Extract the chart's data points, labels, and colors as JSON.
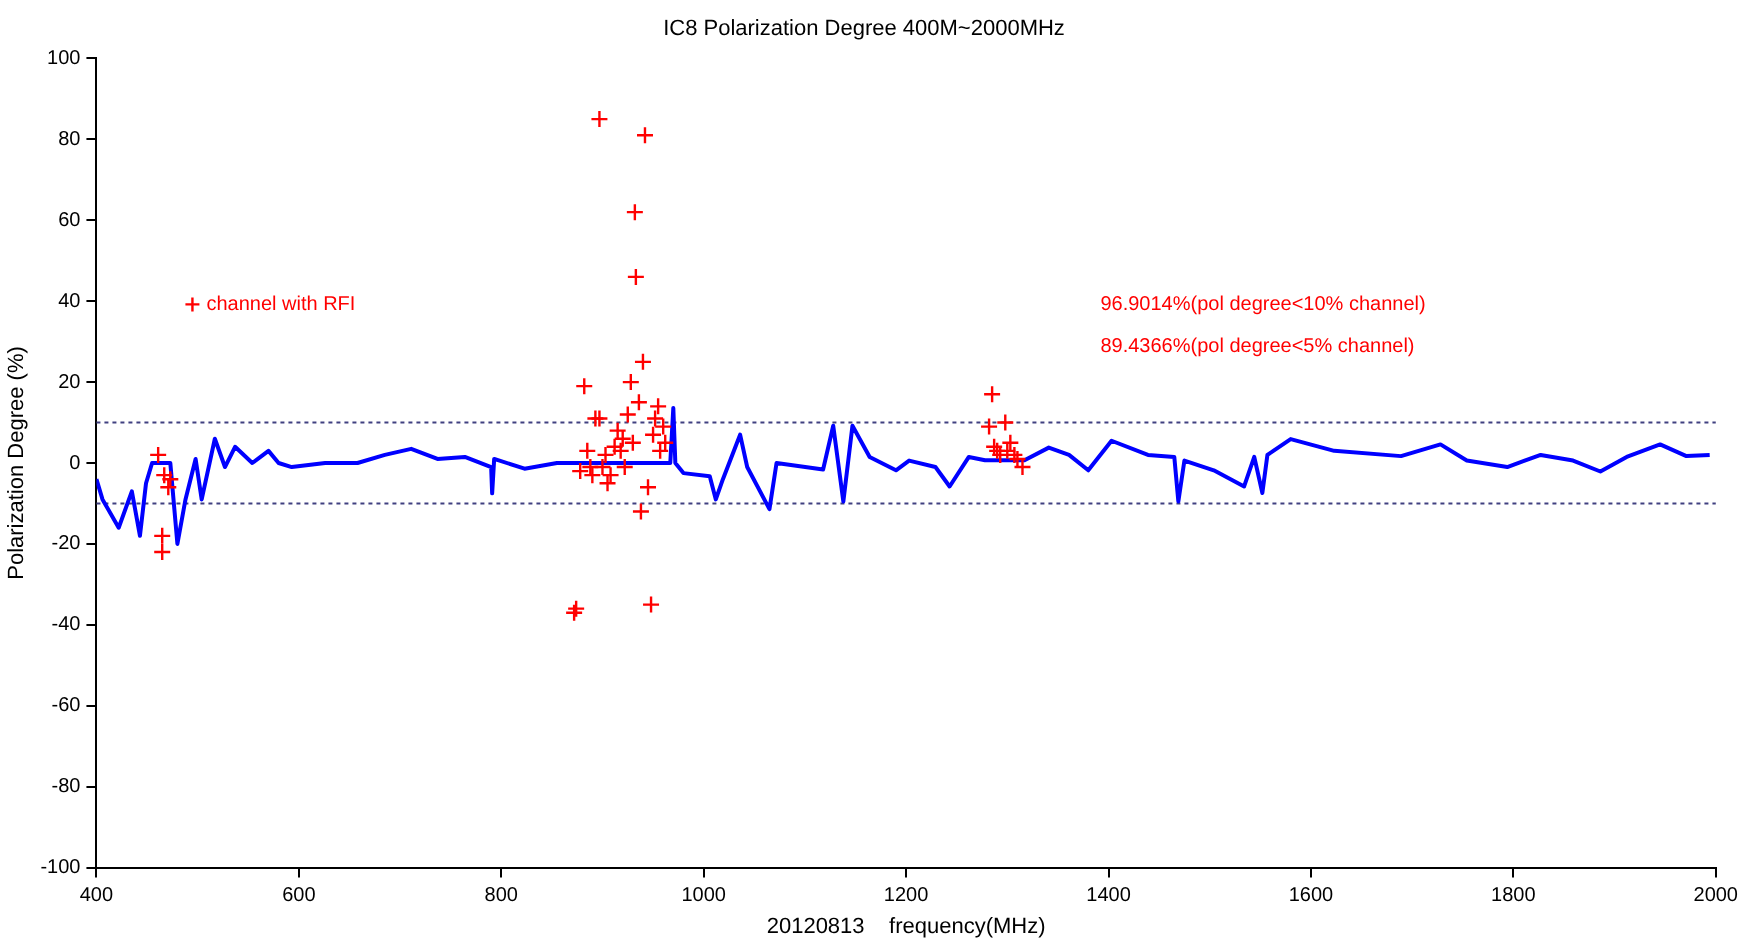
{
  "chart_data": {
    "type": "line",
    "title": "IC8 Polarization Degree 400M~2000MHz",
    "xlabel": "20120813    frequency(MHz)",
    "ylabel": "Polarization Degree (%)",
    "xlim": [
      400,
      2000
    ],
    "xticks": [
      400,
      600,
      800,
      1000,
      1200,
      1400,
      1600,
      1800,
      2000
    ],
    "ylim": [
      -100,
      100
    ],
    "yticks": [
      -100,
      -80,
      -60,
      -40,
      -20,
      0,
      20,
      40,
      60,
      80,
      100
    ],
    "grid": false,
    "legend": "top left",
    "annotations": [
      "96.9014%(pol degree<10% channel)",
      "89.4366%(pol degree<5% channel)"
    ],
    "ref_lines": [
      {
        "axis": "y",
        "value": 10,
        "color": "#404080",
        "line_style": "dotted"
      },
      {
        "axis": "y",
        "value": -10,
        "color": "#404080",
        "line_style": "dotted"
      }
    ],
    "series": [
      {
        "color": "#0000ff",
        "marker": "none",
        "line_style": "solid",
        "x": [
          400,
          406,
          422,
          435,
          443,
          449,
          455,
          473,
          480,
          488,
          498,
          504,
          517,
          527,
          537,
          554,
          570,
          580,
          593,
          626,
          658,
          685,
          711,
          737,
          764,
          790,
          791,
          793,
          823,
          855,
          967,
          970,
          972,
          980,
          1006,
          1012,
          1019,
          1036,
          1043,
          1065,
          1072,
          1118,
          1128,
          1138,
          1147,
          1164,
          1190,
          1203,
          1229,
          1243,
          1262,
          1278,
          1317,
          1341,
          1361,
          1380,
          1403,
          1439,
          1465,
          1469,
          1475,
          1504,
          1534,
          1544,
          1552,
          1557,
          1580,
          1623,
          1689,
          1728,
          1754,
          1794,
          1827,
          1859,
          1886,
          1912,
          1945,
          1971,
          1994
        ],
        "values": [
          -4,
          -9,
          -16,
          -7,
          -18,
          -5,
          0,
          0,
          -20,
          -9,
          1,
          -9,
          6,
          -1,
          4,
          0,
          3,
          0,
          -1,
          0,
          0,
          2,
          3.5,
          1,
          1.5,
          -1,
          -7.5,
          1,
          -1.4,
          0,
          0,
          13.6,
          0,
          -2.5,
          -3.3,
          -9,
          -4,
          7,
          -1,
          -11.4,
          0,
          -1.6,
          9.2,
          -9.5,
          9.2,
          1.5,
          -1.8,
          0.6,
          -1,
          -5.8,
          1.5,
          0.7,
          0.7,
          3.8,
          2,
          -1.8,
          5.5,
          2,
          1.5,
          -9.5,
          0.6,
          -1.8,
          -5.8,
          1.5,
          -7.4,
          2,
          5.9,
          3,
          1.7,
          4.6,
          0.6,
          -1,
          2,
          0.6,
          -2.1,
          1.5,
          4.6,
          1.7,
          2
        ]
      },
      {
        "type": "scatter",
        "name": "channel with RFI",
        "color": "#ff0000",
        "marker": "cross",
        "x": [
          461,
          465,
          465,
          467,
          471,
          473,
          872,
          874,
          878,
          882,
          885,
          888,
          890,
          893,
          897,
          897,
          900,
          903,
          905,
          908,
          912,
          915,
          918,
          920,
          922,
          925,
          928,
          930,
          932,
          933,
          936,
          938,
          940,
          942,
          945,
          948,
          950,
          952,
          955,
          957,
          960,
          962,
          1282,
          1285,
          1287,
          1290,
          1293,
          1298,
          1300,
          1303,
          1307,
          1310,
          1315
        ],
        "values": [
          2,
          -18,
          -22,
          -3,
          -6,
          -4,
          -37,
          -36,
          -2,
          19,
          3,
          -1,
          -3,
          11,
          11,
          85,
          -1,
          2,
          -5,
          -3,
          4,
          8,
          3,
          6,
          -1,
          12,
          20,
          5,
          62,
          46,
          15,
          -12,
          25,
          81,
          -6,
          -35,
          7,
          11,
          14,
          3,
          9,
          5,
          9,
          17,
          4,
          3,
          2,
          10,
          3,
          5,
          2,
          1,
          -1
        ]
      }
    ]
  }
}
